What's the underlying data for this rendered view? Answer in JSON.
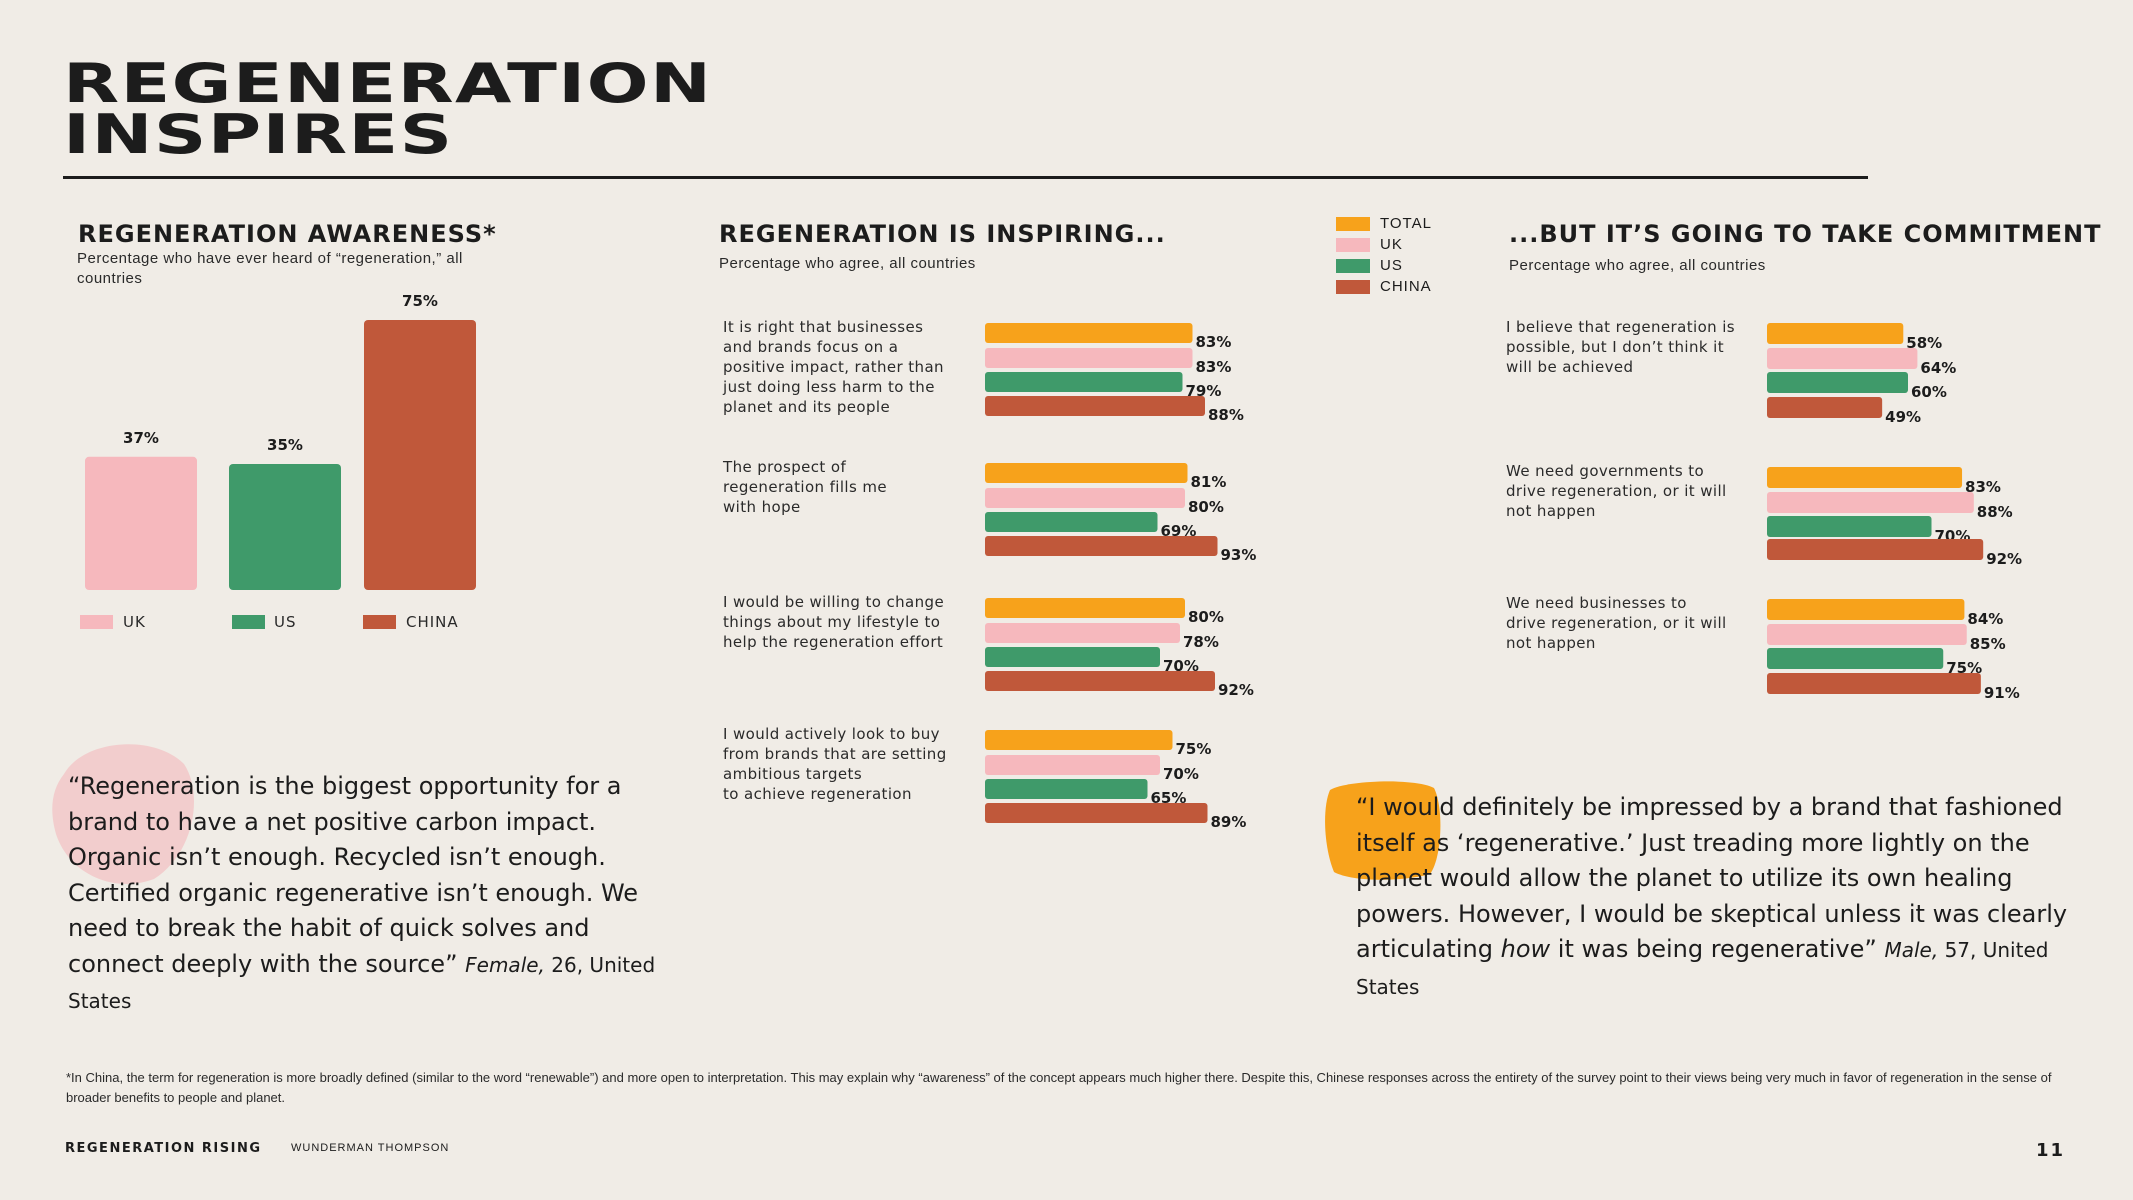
{
  "page": {
    "title_line1": "REGENERATION",
    "title_line2": "INSPIRES",
    "footnote": "*In China, the term for regeneration is more broadly defined (similar to the word “renewable”) and more open to interpretation. This may explain why “awareness” of the concept appears much higher there. Despite this, Chinese responses across the entirety of the survey point to their views being very much in favor of regeneration in the sense of broader benefits to people and planet.",
    "brand": "REGENERATION RISING",
    "brand2": "WUNDERMAN THOMPSON",
    "page_number": "11"
  },
  "colors": {
    "total": "#f7a21b",
    "uk": "#f6b8bd",
    "us": "#3f9a6a",
    "china": "#c0583a"
  },
  "legend": [
    {
      "label": "TOTAL",
      "color": "#f7a21b"
    },
    {
      "label": "UK",
      "color": "#f6b8bd"
    },
    {
      "label": "US",
      "color": "#3f9a6a"
    },
    {
      "label": "CHINA",
      "color": "#c0583a"
    }
  ],
  "quotes": {
    "left": {
      "text": "“Regeneration is the biggest opportunity for a brand to have a net positive carbon impact. Organic isn’t enough. Recycled isn’t enough. Certified organic regenerative isn’t enough. We need to break the habit of quick solves and connect deeply with the source”",
      "gender": "Female,",
      "age_country": "26, United States"
    },
    "right": {
      "text_part1": "“I would definitely be impressed by a brand that fashioned itself as ‘regenerative.’ Just treading more lightly on the planet would allow the planet to utilize its own healing powers. However, I would be skeptical unless it was clearly articulating",
      "emph": "how",
      "text_part2": "it was being regenerative”",
      "gender": "Male,",
      "age_country": "57, United States"
    }
  },
  "chart_data": [
    {
      "type": "bar",
      "title": "REGENERATION AWARENESS*",
      "subtitle": "Percentage who have ever heard of “regeneration,” all countries",
      "categories": [
        "UK",
        "US",
        "CHINA"
      ],
      "values": [
        37,
        35,
        75
      ],
      "value_labels": [
        "37%",
        "35%",
        "75%"
      ],
      "ylim": [
        0,
        75
      ],
      "legend": [
        "UK",
        "US",
        "CHINA"
      ]
    },
    {
      "type": "bar",
      "orientation": "horizontal",
      "title": "REGENERATION IS INSPIRING...",
      "subtitle": "Percentage who agree, all countries",
      "series_names": [
        "TOTAL",
        "UK",
        "US",
        "CHINA"
      ],
      "categories": [
        "It is right that businesses and brands focus on a positive impact, rather than just doing less harm to the planet and its people",
        "The prospect of regeneration fills me with hope",
        "I would be willing to change things about my lifestyle to help the regeneration effort",
        "I would actively look to buy from brands that are setting ambitious targets to achieve regeneration"
      ],
      "label_lines": [
        [
          "It is right that businesses",
          "and brands focus on a",
          "positive impact, rather than",
          "just doing less harm to the",
          "planet and its people"
        ],
        [
          "The prospect of",
          "regeneration fills me",
          "with hope"
        ],
        [
          "I would be willing to change",
          "things about my lifestyle to",
          "help the regeneration effort"
        ],
        [
          "I would actively look to buy",
          "from brands that are setting",
          "ambitious targets",
          "to achieve regeneration"
        ]
      ],
      "values": [
        [
          83,
          83,
          79,
          88
        ],
        [
          81,
          80,
          69,
          93
        ],
        [
          80,
          78,
          70,
          92
        ],
        [
          75,
          70,
          65,
          89
        ]
      ],
      "value_labels": [
        [
          "83%",
          "83%",
          "79%",
          "88%"
        ],
        [
          "81%",
          "80%",
          "69%",
          "93%"
        ],
        [
          "80%",
          "78%",
          "70%",
          "92%"
        ],
        [
          "75%",
          "70%",
          "65%",
          "89%"
        ]
      ]
    },
    {
      "type": "bar",
      "orientation": "horizontal",
      "title": "...BUT IT’S GOING TO TAKE COMMITMENT",
      "subtitle": "Percentage who agree, all countries",
      "series_names": [
        "TOTAL",
        "UK",
        "US",
        "CHINA"
      ],
      "categories": [
        "I believe that regeneration is possible, but I don’t think it will be achieved",
        "We need governments to drive regeneration, or it will not happen",
        "We need businesses to drive regeneration, or it will not happen"
      ],
      "label_lines": [
        [
          "I believe that regeneration is",
          "possible, but I don’t think it",
          "will be achieved"
        ],
        [
          "We need governments to",
          "drive regeneration, or it will",
          "not happen"
        ],
        [
          "We need businesses to",
          "drive regeneration, or it will",
          "not happen"
        ]
      ],
      "values": [
        [
          58,
          64,
          60,
          49
        ],
        [
          83,
          88,
          70,
          92
        ],
        [
          84,
          85,
          75,
          91
        ]
      ],
      "value_labels": [
        [
          "58%",
          "64%",
          "60%",
          "49%"
        ],
        [
          "83%",
          "88%",
          "70%",
          "92%"
        ],
        [
          "84%",
          "85%",
          "75%",
          "91%"
        ]
      ]
    }
  ]
}
